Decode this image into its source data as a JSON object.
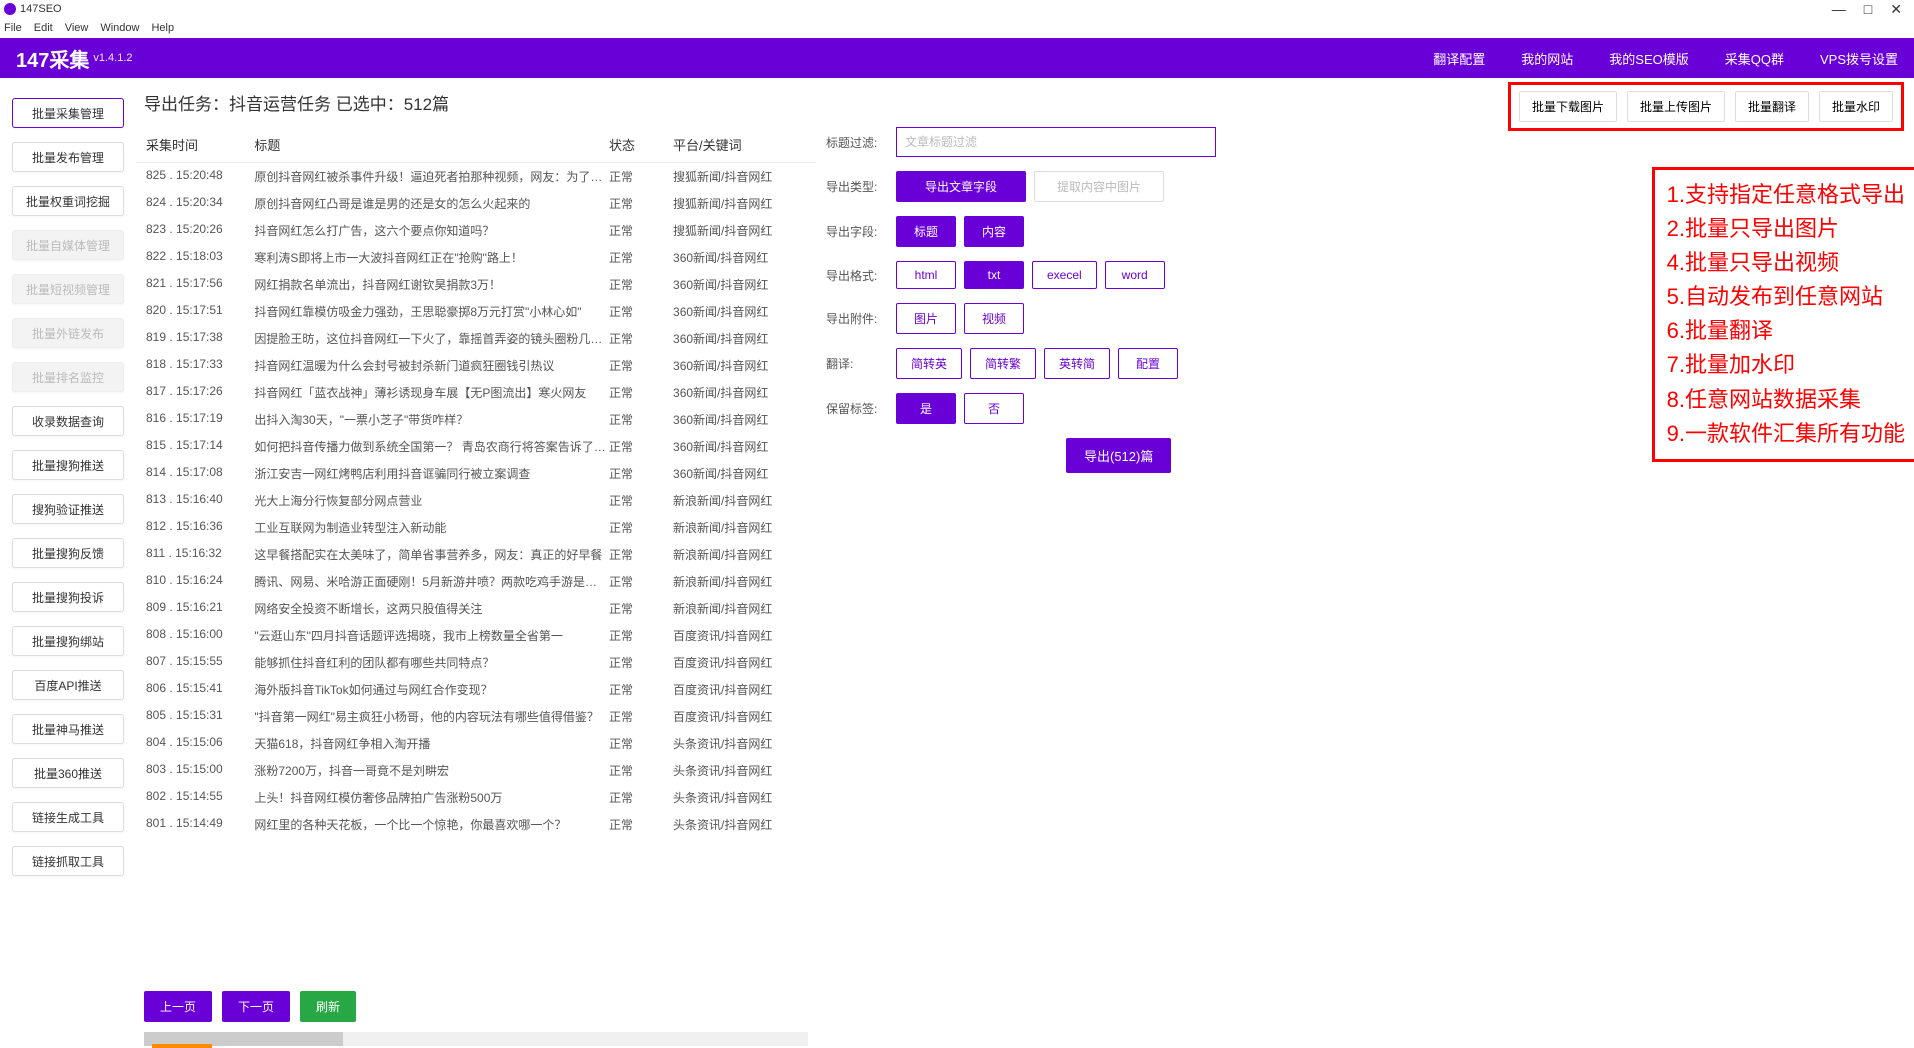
{
  "titlebar": {
    "title": "147SEO"
  },
  "menubar": [
    "File",
    "Edit",
    "View",
    "Window",
    "Help"
  ],
  "header": {
    "title": "147采集",
    "version": "v1.4.1.2",
    "nav": [
      "翻译配置",
      "我的网站",
      "我的SEO模版",
      "采集QQ群",
      "VPS拨号设置"
    ]
  },
  "sidebar": [
    {
      "label": "批量采集管理",
      "active": true
    },
    {
      "label": "批量发布管理"
    },
    {
      "label": "批量权重词挖掘"
    },
    {
      "label": "批量自媒体管理",
      "disabled": true
    },
    {
      "label": "批量短视频管理",
      "disabled": true
    },
    {
      "label": "批量外链发布",
      "disabled": true
    },
    {
      "label": "批量排名监控",
      "disabled": true
    },
    {
      "label": "收录数据查询"
    },
    {
      "label": "批量搜狗推送"
    },
    {
      "label": "搜狗验证推送"
    },
    {
      "label": "批量搜狗反馈"
    },
    {
      "label": "批量搜狗投诉"
    },
    {
      "label": "批量搜狗绑站"
    },
    {
      "label": "百度API推送"
    },
    {
      "label": "批量神马推送"
    },
    {
      "label": "批量360推送"
    },
    {
      "label": "链接生成工具"
    },
    {
      "label": "链接抓取工具"
    }
  ],
  "task_title": "导出任务：抖音运营任务 已选中：512篇",
  "top_actions": [
    "批量下载图片",
    "批量上传图片",
    "批量翻译",
    "批量水印"
  ],
  "table": {
    "headers": {
      "time": "采集时间",
      "title": "标题",
      "status": "状态",
      "platform": "平台/关键词"
    },
    "rows": [
      {
        "id": "825",
        "time": "15:20:48",
        "title": "原创抖音网红被杀事件升级！逼迫死者拍那种视频，网友：为了红没底线",
        "status": "正常",
        "platform": "搜狐新闻/抖音网红"
      },
      {
        "id": "824",
        "time": "15:20:34",
        "title": "原创抖音网红凸哥是谁是男的还是女的怎么火起来的",
        "status": "正常",
        "platform": "搜狐新闻/抖音网红"
      },
      {
        "id": "823",
        "time": "15:20:26",
        "title": "抖音网红怎么打广告，这六个要点你知道吗？",
        "status": "正常",
        "platform": "搜狐新闻/抖音网红"
      },
      {
        "id": "822",
        "time": "15:18:03",
        "title": "寒利涛S即将上市一大波抖音网红正在\"抢购\"路上！",
        "status": "正常",
        "platform": "360新闻/抖音网红"
      },
      {
        "id": "821",
        "time": "15:17:56",
        "title": "网红捐款名单流出，抖音网红谢钦昊捐款3万！",
        "status": "正常",
        "platform": "360新闻/抖音网红"
      },
      {
        "id": "820",
        "time": "15:17:51",
        "title": "抖音网红靠模仿吸金力强劲，王思聪豪掷8万元打赏\"小林心如\"",
        "status": "正常",
        "platform": "360新闻/抖音网红"
      },
      {
        "id": "819",
        "time": "15:17:38",
        "title": "因提脸王昉，这位抖音网红一下火了，靠摇首弄姿的镜头圈粉几十万",
        "status": "正常",
        "platform": "360新闻/抖音网红"
      },
      {
        "id": "818",
        "time": "15:17:33",
        "title": "抖音网红温暖为什么会封号被封杀新门道疯狂圈钱引热议",
        "status": "正常",
        "platform": "360新闻/抖音网红"
      },
      {
        "id": "817",
        "time": "15:17:26",
        "title": "抖音网红「蓝衣战神」薄衫诱现身车展【无P图流出】寒火网友",
        "status": "正常",
        "platform": "360新闻/抖音网红"
      },
      {
        "id": "816",
        "time": "15:17:19",
        "title": "出抖入淘30天，\"一票小芝子\"带货咋样？",
        "status": "正常",
        "platform": "360新闻/抖音网红"
      },
      {
        "id": "815",
        "time": "15:17:14",
        "title": "如何把抖音传播力做到系统全国第一？ 青岛农商行将答案告诉了我们……",
        "status": "正常",
        "platform": "360新闻/抖音网红"
      },
      {
        "id": "814",
        "time": "15:17:08",
        "title": "浙江安吉一网红烤鸭店利用抖音诓骗同行被立案调查",
        "status": "正常",
        "platform": "360新闻/抖音网红"
      },
      {
        "id": "813",
        "time": "15:16:40",
        "title": "光大上海分行恢复部分网点营业",
        "status": "正常",
        "platform": "新浪新闻/抖音网红"
      },
      {
        "id": "812",
        "time": "15:16:36",
        "title": "工业互联网为制造业转型注入新动能",
        "status": "正常",
        "platform": "新浪新闻/抖音网红"
      },
      {
        "id": "811",
        "time": "15:16:32",
        "title": "这早餐搭配实在太美味了，简单省事营养多，网友：真正的好早餐",
        "status": "正常",
        "platform": "新浪新闻/抖音网红"
      },
      {
        "id": "810",
        "time": "15:16:24",
        "title": "腾讯、网易、米哈游正面硬刚！5月新游井喷？两款吃鸡手游是焦点",
        "status": "正常",
        "platform": "新浪新闻/抖音网红"
      },
      {
        "id": "809",
        "time": "15:16:21",
        "title": "网络安全投资不断增长，这两只股值得关注",
        "status": "正常",
        "platform": "新浪新闻/抖音网红"
      },
      {
        "id": "808",
        "time": "15:16:00",
        "title": "\"云逛山东\"四月抖音话题评选揭晓，我市上榜数量全省第一",
        "status": "正常",
        "platform": "百度资讯/抖音网红"
      },
      {
        "id": "807",
        "time": "15:15:55",
        "title": "能够抓住抖音红利的团队都有哪些共同特点？",
        "status": "正常",
        "platform": "百度资讯/抖音网红"
      },
      {
        "id": "806",
        "time": "15:15:41",
        "title": "海外版抖音TikTok如何通过与网红合作变现？",
        "status": "正常",
        "platform": "百度资讯/抖音网红"
      },
      {
        "id": "805",
        "time": "15:15:31",
        "title": "\"抖音第一网红\"易主疯狂小杨哥，他的内容玩法有哪些值得借鉴？",
        "status": "正常",
        "platform": "百度资讯/抖音网红"
      },
      {
        "id": "804",
        "time": "15:15:06",
        "title": "天猫618，抖音网红争相入淘开播",
        "status": "正常",
        "platform": "头条资讯/抖音网红"
      },
      {
        "id": "803",
        "time": "15:15:00",
        "title": "涨粉7200万，抖音一哥竟不是刘畊宏",
        "status": "正常",
        "platform": "头条资讯/抖音网红"
      },
      {
        "id": "802",
        "time": "15:14:55",
        "title": "上头！抖音网红模仿奢侈品牌拍广告涨粉500万",
        "status": "正常",
        "platform": "头条资讯/抖音网红"
      },
      {
        "id": "801",
        "time": "15:14:49",
        "title": "网红里的各种天花板，一个比一个惊艳，你最喜欢哪一个？",
        "status": "正常",
        "platform": "头条资讯/抖音网红"
      }
    ]
  },
  "right_panel": {
    "filter_label": "标题过滤:",
    "filter_placeholder": "文章标题过滤",
    "export_type_label": "导出类型:",
    "export_type_options": [
      {
        "label": "导出文章字段",
        "primary": true
      },
      {
        "label": "提取内容中图片",
        "muted": true
      }
    ],
    "export_fields_label": "导出字段:",
    "export_fields_options": [
      {
        "label": "标题",
        "primary": true
      },
      {
        "label": "内容",
        "primary": true
      }
    ],
    "export_format_label": "导出格式:",
    "export_format_options": [
      {
        "label": "html"
      },
      {
        "label": "txt",
        "primary": true
      },
      {
        "label": "execel"
      },
      {
        "label": "word"
      }
    ],
    "export_attach_label": "导出附件:",
    "export_attach_options": [
      {
        "label": "图片"
      },
      {
        "label": "视频"
      }
    ],
    "translate_label": "翻译:",
    "translate_options": [
      {
        "label": "简转英"
      },
      {
        "label": "简转繁"
      },
      {
        "label": "英转简"
      },
      {
        "label": "配置"
      }
    ],
    "keep_tags_label": "保留标签:",
    "keep_tags_options": [
      {
        "label": "是",
        "primary": true
      },
      {
        "label": "否"
      }
    ],
    "export_button": "导出(512)篇"
  },
  "feature_box": [
    "1.支持指定任意格式导出",
    "2.批量只导出图片",
    "4.批量只导出视频",
    "5.自动发布到任意网站",
    "6.批量翻译",
    "7.批量加水印",
    "8.任意网站数据采集",
    "9.一款软件汇集所有功能"
  ],
  "footer": {
    "prev": "上一页",
    "next": "下一页",
    "refresh": "刷新"
  }
}
